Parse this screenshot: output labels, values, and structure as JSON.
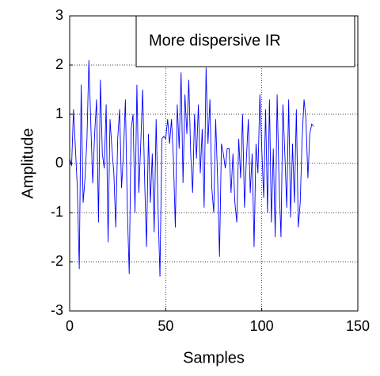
{
  "chart_data": {
    "type": "line",
    "x_label": "Samples",
    "y_label": "Amplitude",
    "annotation": "More dispersive IR",
    "xlim": [
      0,
      150
    ],
    "xticks": [
      0,
      50,
      100,
      150
    ],
    "ylim": [
      -3,
      3
    ],
    "yticks": [
      -3,
      -2,
      -1,
      0,
      1,
      2,
      3
    ],
    "grid": true,
    "x": [
      0,
      1,
      2,
      3,
      4,
      5,
      6,
      7,
      8,
      9,
      10,
      11,
      12,
      13,
      14,
      15,
      16,
      17,
      18,
      19,
      20,
      21,
      22,
      23,
      24,
      25,
      26,
      27,
      28,
      29,
      30,
      31,
      32,
      33,
      34,
      35,
      36,
      37,
      38,
      39,
      40,
      41,
      42,
      43,
      44,
      45,
      46,
      47,
      48,
      49,
      50,
      51,
      52,
      53,
      54,
      55,
      56,
      57,
      58,
      59,
      60,
      61,
      62,
      63,
      64,
      65,
      66,
      67,
      68,
      69,
      70,
      71,
      72,
      73,
      74,
      75,
      76,
      77,
      78,
      79,
      80,
      81,
      82,
      83,
      84,
      85,
      86,
      87,
      88,
      89,
      90,
      91,
      92,
      93,
      94,
      95,
      96,
      97,
      98,
      99,
      100,
      101,
      102,
      103,
      104,
      105,
      106,
      107,
      108,
      109,
      110,
      111,
      112,
      113,
      114,
      115,
      116,
      117,
      118,
      119,
      120,
      121,
      122,
      123,
      124,
      125,
      126,
      127
    ],
    "series": [
      {
        "color": "#0000ff",
        "values": [
          0.1,
          -0.05,
          1.1,
          0.3,
          -0.5,
          -2.15,
          1.6,
          -0.8,
          -0.3,
          0.5,
          2.1,
          0.8,
          -0.4,
          0.6,
          1.3,
          -1.2,
          1.7,
          0.2,
          -0.1,
          1.2,
          -1.6,
          0.9,
          0.3,
          -0.2,
          -1.3,
          0.5,
          1.1,
          -0.5,
          0.2,
          1.3,
          -0.9,
          -2.25,
          0.7,
          1.0,
          -1.0,
          1.6,
          -0.6,
          0.4,
          1.5,
          -0.3,
          -1.7,
          0.6,
          -0.8,
          0.2,
          -1.4,
          0.9,
          -0.9,
          -2.3,
          0.5,
          0.55,
          0.5,
          0.9,
          0.4,
          0.9,
          0.1,
          -1.3,
          1.2,
          0.3,
          1.85,
          -0.4,
          1.4,
          0.6,
          1.7,
          0.2,
          -0.6,
          1.0,
          0.1,
          1.2,
          -0.2,
          0.7,
          -0.9,
          1.95,
          0.4,
          1.3,
          -0.5,
          -1.0,
          0.9,
          -0.3,
          -1.9,
          0.4,
          0.2,
          -0.1,
          0.3,
          0.3,
          -0.6,
          0.2,
          -0.8,
          -1.2,
          0.5,
          -0.3,
          1.0,
          -0.9,
          0.1,
          0.9,
          -0.6,
          0.2,
          -1.7,
          0.4,
          -0.2,
          1.4,
          0.3,
          -0.7,
          1.1,
          -1.0,
          1.3,
          -1.2,
          0.3,
          -1.5,
          1.4,
          -0.4,
          -1.5,
          1.2,
          0.2,
          -0.9,
          1.3,
          -1.1,
          0.4,
          -0.8,
          1.1,
          -1.3,
          -0.8,
          0.5,
          1.3,
          0.9,
          -0.3,
          0.6,
          0.8,
          0.75
        ]
      }
    ]
  }
}
